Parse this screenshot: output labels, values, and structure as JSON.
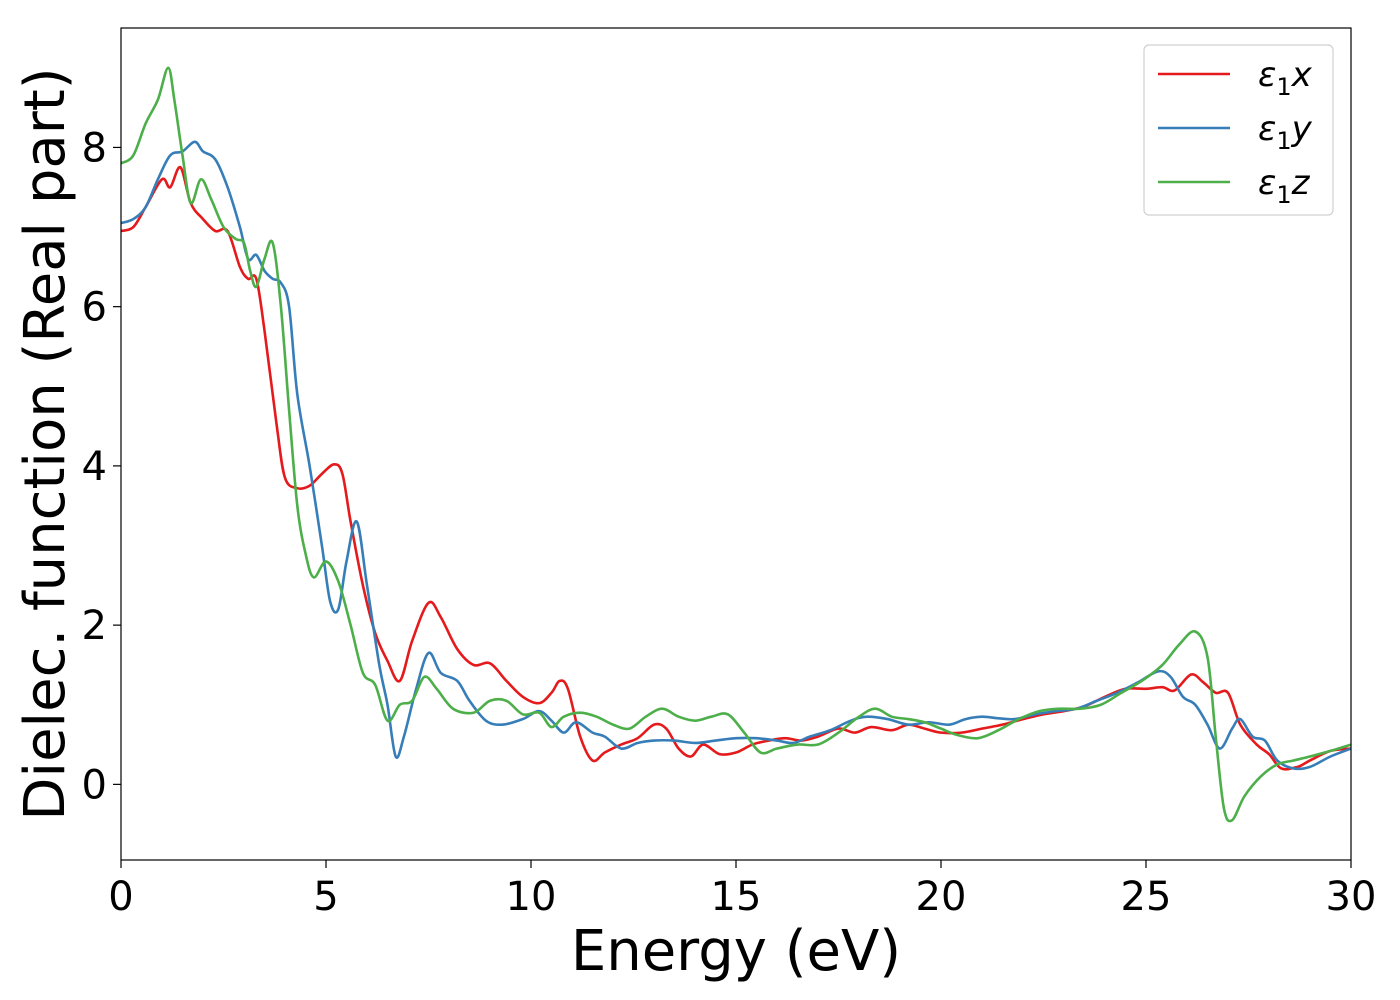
{
  "chart_data": {
    "type": "line",
    "xlabel": "Energy (eV)",
    "ylabel": "Dielec. function (Real part)",
    "xlim": [
      0,
      30
    ],
    "ylim": [
      -0.95,
      9.5
    ],
    "xticks": [
      0,
      5,
      10,
      15,
      20,
      25,
      30
    ],
    "yticks": [
      0,
      2,
      4,
      6,
      8
    ],
    "grid": false,
    "legend_position": "top-right",
    "series": [
      {
        "name": "ε₁x",
        "legend_base": "ε",
        "legend_sub": "1",
        "legend_var": "x",
        "color": "#e41a1c",
        "points": [
          [
            0,
            6.95
          ],
          [
            0.3,
            7.0
          ],
          [
            0.6,
            7.25
          ],
          [
            1.0,
            7.6
          ],
          [
            1.2,
            7.5
          ],
          [
            1.45,
            7.75
          ],
          [
            1.7,
            7.3
          ],
          [
            2.0,
            7.1
          ],
          [
            2.3,
            6.95
          ],
          [
            2.6,
            6.95
          ],
          [
            2.9,
            6.5
          ],
          [
            3.1,
            6.35
          ],
          [
            3.3,
            6.35
          ],
          [
            3.5,
            5.7
          ],
          [
            3.8,
            4.5
          ],
          [
            4.0,
            3.85
          ],
          [
            4.3,
            3.72
          ],
          [
            4.6,
            3.75
          ],
          [
            4.9,
            3.9
          ],
          [
            5.2,
            4.02
          ],
          [
            5.4,
            3.9
          ],
          [
            5.6,
            3.3
          ],
          [
            5.9,
            2.5
          ],
          [
            6.2,
            1.9
          ],
          [
            6.5,
            1.55
          ],
          [
            6.8,
            1.3
          ],
          [
            7.1,
            1.8
          ],
          [
            7.5,
            2.28
          ],
          [
            7.8,
            2.1
          ],
          [
            8.2,
            1.7
          ],
          [
            8.6,
            1.5
          ],
          [
            9.0,
            1.52
          ],
          [
            9.4,
            1.3
          ],
          [
            9.8,
            1.1
          ],
          [
            10.2,
            1.02
          ],
          [
            10.5,
            1.15
          ],
          [
            10.7,
            1.3
          ],
          [
            10.9,
            1.2
          ],
          [
            11.2,
            0.6
          ],
          [
            11.5,
            0.3
          ],
          [
            11.8,
            0.4
          ],
          [
            12.2,
            0.5
          ],
          [
            12.6,
            0.58
          ],
          [
            13.0,
            0.75
          ],
          [
            13.3,
            0.7
          ],
          [
            13.6,
            0.45
          ],
          [
            13.9,
            0.35
          ],
          [
            14.2,
            0.5
          ],
          [
            14.6,
            0.38
          ],
          [
            15.0,
            0.4
          ],
          [
            15.4,
            0.5
          ],
          [
            15.8,
            0.55
          ],
          [
            16.2,
            0.58
          ],
          [
            16.6,
            0.55
          ],
          [
            17.0,
            0.6
          ],
          [
            17.5,
            0.7
          ],
          [
            17.9,
            0.65
          ],
          [
            18.3,
            0.72
          ],
          [
            18.8,
            0.68
          ],
          [
            19.2,
            0.75
          ],
          [
            19.6,
            0.7
          ],
          [
            20.0,
            0.65
          ],
          [
            20.5,
            0.65
          ],
          [
            21.0,
            0.7
          ],
          [
            21.5,
            0.75
          ],
          [
            22.0,
            0.82
          ],
          [
            22.5,
            0.88
          ],
          [
            23.0,
            0.92
          ],
          [
            23.5,
            0.98
          ],
          [
            24.0,
            1.1
          ],
          [
            24.5,
            1.2
          ],
          [
            25.0,
            1.2
          ],
          [
            25.4,
            1.22
          ],
          [
            25.7,
            1.18
          ],
          [
            26.1,
            1.38
          ],
          [
            26.4,
            1.28
          ],
          [
            26.7,
            1.15
          ],
          [
            27.0,
            1.15
          ],
          [
            27.3,
            0.75
          ],
          [
            27.7,
            0.5
          ],
          [
            28.0,
            0.38
          ],
          [
            28.3,
            0.2
          ],
          [
            28.7,
            0.22
          ],
          [
            29.0,
            0.3
          ],
          [
            29.5,
            0.42
          ],
          [
            30.0,
            0.45
          ]
        ]
      },
      {
        "name": "ε₁y",
        "legend_base": "ε",
        "legend_sub": "1",
        "legend_var": "y",
        "color": "#377eb8",
        "points": [
          [
            0,
            7.05
          ],
          [
            0.3,
            7.1
          ],
          [
            0.6,
            7.25
          ],
          [
            0.9,
            7.6
          ],
          [
            1.2,
            7.9
          ],
          [
            1.5,
            7.95
          ],
          [
            1.8,
            8.07
          ],
          [
            2.0,
            7.95
          ],
          [
            2.3,
            7.85
          ],
          [
            2.6,
            7.5
          ],
          [
            2.9,
            7.0
          ],
          [
            3.1,
            6.6
          ],
          [
            3.3,
            6.65
          ],
          [
            3.5,
            6.45
          ],
          [
            3.7,
            6.35
          ],
          [
            3.9,
            6.3
          ],
          [
            4.1,
            6.0
          ],
          [
            4.3,
            4.9
          ],
          [
            4.6,
            4.0
          ],
          [
            4.9,
            3.0
          ],
          [
            5.1,
            2.3
          ],
          [
            5.3,
            2.2
          ],
          [
            5.5,
            2.8
          ],
          [
            5.75,
            3.3
          ],
          [
            6.0,
            2.5
          ],
          [
            6.3,
            1.5
          ],
          [
            6.5,
            1.0
          ],
          [
            6.7,
            0.35
          ],
          [
            6.9,
            0.6
          ],
          [
            7.2,
            1.2
          ],
          [
            7.5,
            1.65
          ],
          [
            7.8,
            1.4
          ],
          [
            8.2,
            1.3
          ],
          [
            8.5,
            1.05
          ],
          [
            8.9,
            0.8
          ],
          [
            9.3,
            0.75
          ],
          [
            9.8,
            0.82
          ],
          [
            10.2,
            0.92
          ],
          [
            10.5,
            0.8
          ],
          [
            10.8,
            0.65
          ],
          [
            11.1,
            0.78
          ],
          [
            11.5,
            0.65
          ],
          [
            11.8,
            0.6
          ],
          [
            12.2,
            0.45
          ],
          [
            12.6,
            0.52
          ],
          [
            13.0,
            0.55
          ],
          [
            13.5,
            0.55
          ],
          [
            14.0,
            0.52
          ],
          [
            14.5,
            0.55
          ],
          [
            15.0,
            0.58
          ],
          [
            15.5,
            0.58
          ],
          [
            16.0,
            0.55
          ],
          [
            16.4,
            0.52
          ],
          [
            16.8,
            0.6
          ],
          [
            17.3,
            0.68
          ],
          [
            17.8,
            0.8
          ],
          [
            18.2,
            0.85
          ],
          [
            18.7,
            0.82
          ],
          [
            19.2,
            0.75
          ],
          [
            19.7,
            0.78
          ],
          [
            20.2,
            0.75
          ],
          [
            20.6,
            0.82
          ],
          [
            21.0,
            0.85
          ],
          [
            21.4,
            0.83
          ],
          [
            21.8,
            0.82
          ],
          [
            22.3,
            0.88
          ],
          [
            22.8,
            0.92
          ],
          [
            23.3,
            0.95
          ],
          [
            23.8,
            1.05
          ],
          [
            24.3,
            1.15
          ],
          [
            24.8,
            1.28
          ],
          [
            25.3,
            1.42
          ],
          [
            25.6,
            1.35
          ],
          [
            25.9,
            1.1
          ],
          [
            26.2,
            1.0
          ],
          [
            26.5,
            0.75
          ],
          [
            26.8,
            0.45
          ],
          [
            27.1,
            0.7
          ],
          [
            27.3,
            0.82
          ],
          [
            27.6,
            0.6
          ],
          [
            27.9,
            0.55
          ],
          [
            28.2,
            0.3
          ],
          [
            28.6,
            0.2
          ],
          [
            29.0,
            0.22
          ],
          [
            29.5,
            0.35
          ],
          [
            30.0,
            0.45
          ]
        ]
      },
      {
        "name": "ε₁z",
        "legend_base": "ε",
        "legend_sub": "1",
        "legend_var": "z",
        "color": "#4daf4a",
        "points": [
          [
            0,
            7.8
          ],
          [
            0.3,
            7.9
          ],
          [
            0.6,
            8.3
          ],
          [
            0.9,
            8.6
          ],
          [
            1.15,
            9.0
          ],
          [
            1.3,
            8.6
          ],
          [
            1.5,
            7.9
          ],
          [
            1.7,
            7.3
          ],
          [
            1.95,
            7.6
          ],
          [
            2.2,
            7.35
          ],
          [
            2.5,
            7.0
          ],
          [
            2.8,
            6.85
          ],
          [
            3.0,
            6.8
          ],
          [
            3.15,
            6.45
          ],
          [
            3.3,
            6.25
          ],
          [
            3.5,
            6.6
          ],
          [
            3.7,
            6.8
          ],
          [
            3.9,
            6.0
          ],
          [
            4.1,
            4.7
          ],
          [
            4.3,
            3.5
          ],
          [
            4.5,
            2.9
          ],
          [
            4.7,
            2.6
          ],
          [
            5.0,
            2.8
          ],
          [
            5.3,
            2.55
          ],
          [
            5.6,
            2.0
          ],
          [
            5.9,
            1.4
          ],
          [
            6.2,
            1.25
          ],
          [
            6.5,
            0.8
          ],
          [
            6.8,
            1.0
          ],
          [
            7.1,
            1.05
          ],
          [
            7.4,
            1.35
          ],
          [
            7.7,
            1.2
          ],
          [
            8.1,
            0.95
          ],
          [
            8.6,
            0.9
          ],
          [
            9.0,
            1.05
          ],
          [
            9.4,
            1.05
          ],
          [
            9.8,
            0.88
          ],
          [
            10.2,
            0.9
          ],
          [
            10.5,
            0.72
          ],
          [
            10.8,
            0.85
          ],
          [
            11.2,
            0.9
          ],
          [
            11.6,
            0.85
          ],
          [
            12.0,
            0.75
          ],
          [
            12.4,
            0.7
          ],
          [
            12.8,
            0.85
          ],
          [
            13.2,
            0.95
          ],
          [
            13.6,
            0.85
          ],
          [
            14.0,
            0.8
          ],
          [
            14.4,
            0.85
          ],
          [
            14.8,
            0.88
          ],
          [
            15.2,
            0.65
          ],
          [
            15.6,
            0.4
          ],
          [
            16.0,
            0.45
          ],
          [
            16.5,
            0.5
          ],
          [
            17.0,
            0.5
          ],
          [
            17.5,
            0.65
          ],
          [
            18.0,
            0.85
          ],
          [
            18.4,
            0.95
          ],
          [
            18.8,
            0.85
          ],
          [
            19.2,
            0.82
          ],
          [
            19.6,
            0.78
          ],
          [
            20.0,
            0.7
          ],
          [
            20.4,
            0.62
          ],
          [
            20.9,
            0.58
          ],
          [
            21.4,
            0.68
          ],
          [
            21.9,
            0.82
          ],
          [
            22.4,
            0.92
          ],
          [
            22.9,
            0.95
          ],
          [
            23.4,
            0.95
          ],
          [
            23.9,
            1.0
          ],
          [
            24.4,
            1.15
          ],
          [
            24.9,
            1.3
          ],
          [
            25.4,
            1.5
          ],
          [
            25.8,
            1.75
          ],
          [
            26.2,
            1.92
          ],
          [
            26.5,
            1.6
          ],
          [
            26.7,
            0.6
          ],
          [
            26.9,
            -0.3
          ],
          [
            27.1,
            -0.45
          ],
          [
            27.4,
            -0.15
          ],
          [
            27.8,
            0.1
          ],
          [
            28.2,
            0.25
          ],
          [
            28.6,
            0.3
          ],
          [
            29.0,
            0.35
          ],
          [
            29.5,
            0.42
          ],
          [
            30.0,
            0.5
          ]
        ]
      }
    ]
  }
}
